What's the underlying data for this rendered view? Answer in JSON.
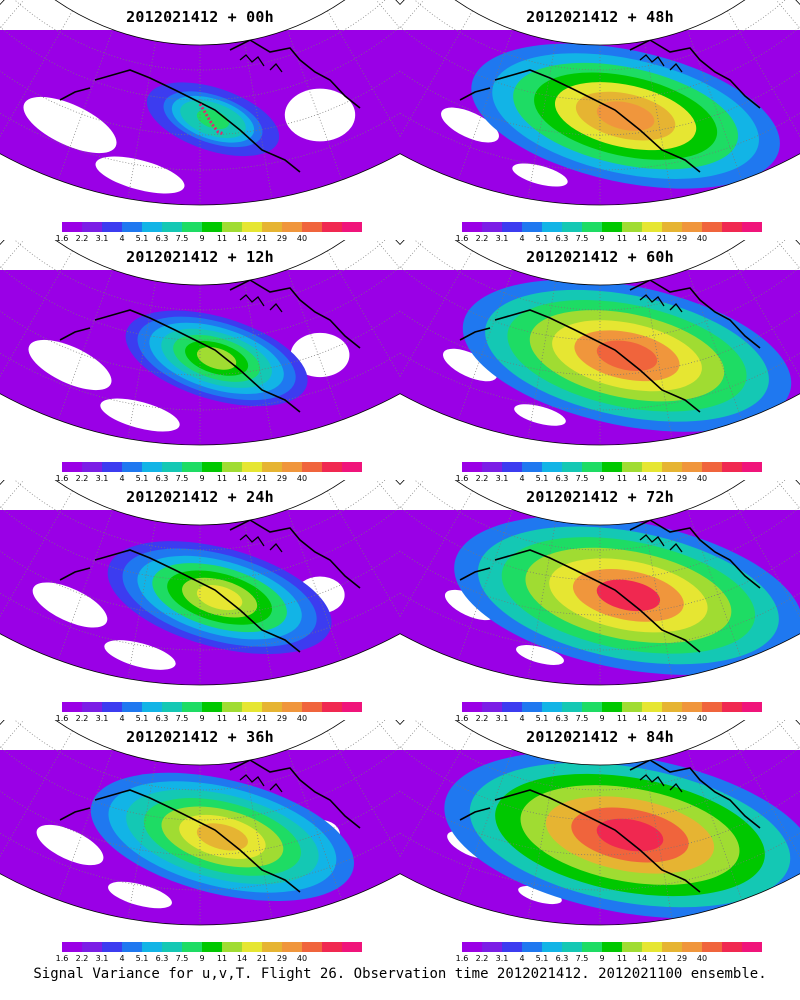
{
  "panels": [
    {
      "title": "2012021412 + 00h",
      "lead": "00h",
      "intensity": 0.15,
      "flight_track": true
    },
    {
      "title": "2012021412 + 48h",
      "lead": "48h",
      "intensity": 0.78,
      "flight_track": false
    },
    {
      "title": "2012021412 + 12h",
      "lead": "12h",
      "intensity": 0.33,
      "flight_track": false
    },
    {
      "title": "2012021412 + 60h",
      "lead": "60h",
      "intensity": 0.85,
      "flight_track": false
    },
    {
      "title": "2012021412 + 24h",
      "lead": "24h",
      "intensity": 0.48,
      "flight_track": false
    },
    {
      "title": "2012021412 + 72h",
      "lead": "72h",
      "intensity": 0.92,
      "flight_track": false
    },
    {
      "title": "2012021412 + 36h",
      "lead": "36h",
      "intensity": 0.62,
      "flight_track": false
    },
    {
      "title": "2012021412 + 84h",
      "lead": "84h",
      "intensity": 1.0,
      "flight_track": false
    }
  ],
  "colorbar": {
    "labels": [
      "1.6",
      "2.2",
      "3.1",
      "4",
      "5.1",
      "6.3",
      "7.5",
      "9",
      "11",
      "14",
      "21",
      "29",
      "40"
    ],
    "colors": [
      "#9a00e6",
      "#7b1ee6",
      "#3c3cf0",
      "#1f78f0",
      "#12b4e6",
      "#14c8b4",
      "#1edc64",
      "#00c800",
      "#a0dc32",
      "#e6e632",
      "#e6b432",
      "#f0963c",
      "#f0643c",
      "#f02850",
      "#f0147a"
    ]
  },
  "caption": "Signal Variance for u,v,T. Flight 26. Observation time 2012021412. 2012021100 ensemble."
}
